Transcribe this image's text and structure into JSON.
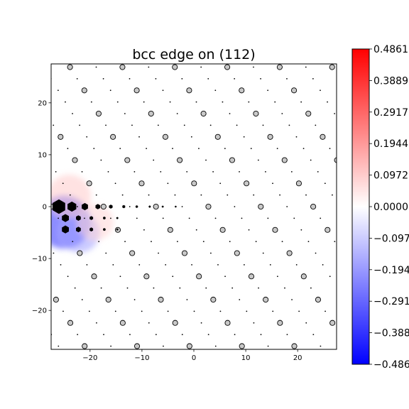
{
  "chart_data": {
    "type": "scatter",
    "title": "bcc edge on (112)",
    "xlabel": "",
    "ylabel": "",
    "xlim": [
      -27.5,
      27.5
    ],
    "ylim": [
      -27.5,
      27.5
    ],
    "x_ticks": [
      -20,
      -10,
      0,
      10,
      20
    ],
    "y_ticks": [
      -20,
      -10,
      0,
      10,
      20
    ],
    "x_tick_labels": [
      "−20",
      "−10",
      "0",
      "10",
      "20"
    ],
    "y_tick_labels": [
      "−20",
      "−10",
      "0",
      "10",
      "20"
    ],
    "grid": false,
    "lattice": {
      "a": 10.1,
      "row_spacing": 2.24,
      "row_shift": 3.67,
      "open_atom_rows": "even",
      "open_atom_color": "#c8c8c8",
      "small_atom_color": "#000000"
    },
    "dislocation_core": {
      "x": -26,
      "y": -1.5,
      "slip_plane_y": 0,
      "arrow_length_scale": 1.0
    },
    "colorbar": {
      "cmap": "bwr",
      "min": -0.4861,
      "max": 0.4861,
      "ticks": [
        0.4861,
        0.3889,
        0.2917,
        0.1944,
        0.0972,
        0.0,
        -0.0972,
        -0.1944,
        -0.2917,
        -0.3889,
        -0.4861
      ],
      "tick_labels": [
        "0.4861",
        "0.3889",
        "0.2917",
        "0.1944",
        "0.0972",
        "0.0000",
        "−0.0972",
        "−0.1944",
        "−0.2917",
        "−0.3889",
        "−0.4861"
      ],
      "colors": {
        "low": "#0000ff",
        "mid": "#ffffff",
        "high": "#ff0000"
      }
    },
    "strain_field": {
      "blobs": [
        {
          "x": -25,
          "y": -3,
          "sigma": 3.2,
          "value": -0.4
        },
        {
          "x": -22,
          "y": -5,
          "sigma": 2.4,
          "value": -0.18
        },
        {
          "x": -24,
          "y": 2,
          "sigma": 2.6,
          "value": 0.1
        },
        {
          "x": -19,
          "y": -3,
          "sigma": 2.2,
          "value": 0.08
        }
      ]
    }
  }
}
